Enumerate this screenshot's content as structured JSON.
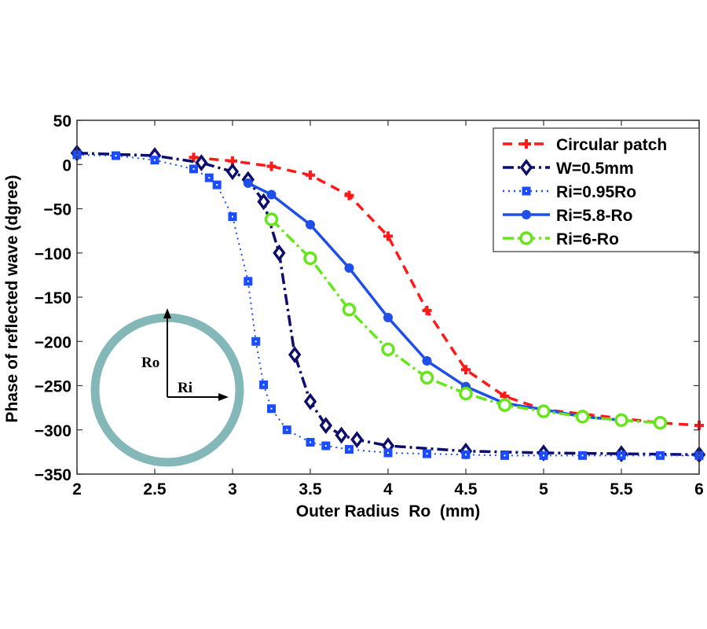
{
  "chart_data": {
    "type": "line",
    "title": "",
    "xlabel": "Outer Radius  Ro  (mm)",
    "ylabel": "Phase of reflected wave (dgree)",
    "xlim": [
      2,
      6
    ],
    "ylim": [
      -350,
      50
    ],
    "xticks": [
      2,
      2.5,
      3,
      3.5,
      4,
      4.5,
      5,
      5.5,
      6
    ],
    "xtick_labels": [
      "2",
      "2.5",
      "3",
      "3.5",
      "4",
      "4.5",
      "5",
      "5.5",
      "6"
    ],
    "yticks": [
      50,
      0,
      -50,
      -100,
      -150,
      -200,
      -250,
      -300,
      -350
    ],
    "ytick_labels": [
      "50",
      "0",
      "−50",
      "−100",
      "−150",
      "−200",
      "−250",
      "−300",
      "−350"
    ],
    "grid": false,
    "legend_position": "top-right",
    "series": [
      {
        "name": "Circular patch",
        "color": "#ff1a1a",
        "line_style": "dashed",
        "marker": "plus",
        "x": [
          2.75,
          3.0,
          3.25,
          3.5,
          3.75,
          4.0,
          4.25,
          4.5,
          4.75,
          5.0,
          5.75,
          6.0
        ],
        "y": [
          8,
          4,
          -2,
          -12,
          -35,
          -81,
          -165,
          -232,
          -262,
          -277,
          -292,
          -295
        ]
      },
      {
        "name": "W=0.5mm",
        "color": "#0d0d6b",
        "line_style": "dashdot",
        "marker": "diamond",
        "x": [
          2.0,
          2.5,
          2.8,
          3.0,
          3.1,
          3.2,
          3.3,
          3.4,
          3.5,
          3.6,
          3.7,
          3.8,
          4.0,
          4.5,
          5.0,
          5.5,
          6.0
        ],
        "y": [
          13,
          10,
          2,
          -8,
          -17,
          -42,
          -100,
          -215,
          -268,
          -295,
          -306,
          -311,
          -318,
          -324,
          -326,
          -327,
          -328
        ]
      },
      {
        "name": "Ri=0.95Ro",
        "color": "#1a4dff",
        "line_style": "dotted",
        "marker": "square",
        "x": [
          2.0,
          2.25,
          2.5,
          2.75,
          2.85,
          2.9,
          3.0,
          3.1,
          3.15,
          3.2,
          3.25,
          3.35,
          3.5,
          3.6,
          3.75,
          4.0,
          4.25,
          4.5,
          4.75,
          5.0,
          5.25,
          5.5,
          5.75,
          6.0
        ],
        "y": [
          11,
          10,
          5,
          -5,
          -15,
          -23,
          -59,
          -132,
          -200,
          -249,
          -276,
          -300,
          -314,
          -318,
          -322,
          -326,
          -327,
          -328,
          -329,
          -329,
          -329,
          -329,
          -329,
          -329
        ]
      },
      {
        "name": "Ri=5.8-Ro",
        "color": "#1f4fe8",
        "line_style": "solid",
        "marker": "filled-circle",
        "x": [
          3.1,
          3.25,
          3.5,
          3.75,
          4.0,
          4.25,
          4.5,
          4.75,
          5.0,
          5.25,
          5.5
        ],
        "y": [
          -21,
          -34,
          -68,
          -117,
          -173,
          -222,
          -251,
          -270,
          -277,
          -285,
          -289
        ]
      },
      {
        "name": "Ri=6-Ro",
        "color": "#66e61a",
        "line_style": "dashdot",
        "marker": "open-circle",
        "x": [
          3.25,
          3.5,
          3.75,
          4.0,
          4.25,
          4.5,
          4.75,
          5.0,
          5.25,
          5.5,
          5.75
        ],
        "y": [
          -62,
          -106,
          -164,
          -209,
          -241,
          -259,
          -272,
          -279,
          -285,
          -289,
          -292
        ]
      }
    ],
    "inset": {
      "ring_color": "#84b8b8",
      "labels": {
        "outer": "Ro",
        "inner": "Ri"
      }
    }
  }
}
